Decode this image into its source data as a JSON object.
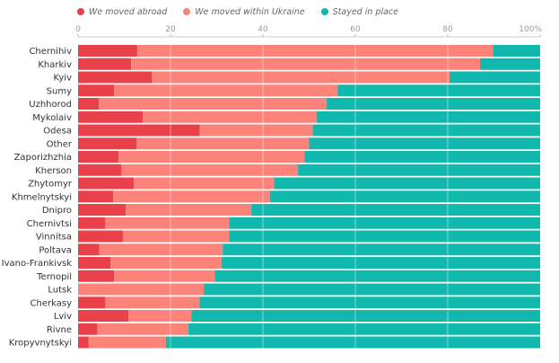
{
  "chart_data": {
    "type": "bar",
    "orientation": "horizontal",
    "stacked": true,
    "title": "",
    "xlabel": "",
    "ylabel": "",
    "xlim": [
      0,
      100
    ],
    "x_ticks": [
      "0",
      "20",
      "40",
      "60",
      "80",
      "100%"
    ],
    "x_tick_values": [
      0,
      20,
      40,
      60,
      80,
      100
    ],
    "grid": true,
    "legend_position": "top-left",
    "categories": [
      "Chernihiv",
      "Kharkiv",
      "Kyiv",
      "Sumy",
      "Uzhhorod",
      "Mykolaiv",
      "Odesa",
      "Other",
      "Zaporizhzhia",
      "Kherson",
      "Zhytomyr",
      "Khmelnytskyi",
      "Dnipro",
      "Chernivtsi",
      "Vinnitsa",
      "Poltava",
      "Ivano-Frankivsk",
      "Ternopil",
      "Lutsk",
      "Cherkasy",
      "Lviv",
      "Rivne",
      "Kropyvnytskyi"
    ],
    "series": [
      {
        "name": "We moved abroad",
        "color": "#e8414a",
        "values": [
          12.8,
          11.5,
          16.0,
          7.8,
          4.5,
          14.0,
          26.3,
          12.7,
          8.8,
          9.4,
          12.1,
          7.6,
          10.3,
          5.9,
          9.7,
          4.6,
          7.0,
          7.8,
          0,
          5.9,
          10.9,
          4.2,
          2.3
        ]
      },
      {
        "name": "We moved within Ukraine",
        "color": "#fb837a",
        "values": [
          77.0,
          75.5,
          64.4,
          48.4,
          49.3,
          37.6,
          24.5,
          37.3,
          40.2,
          38.2,
          30.3,
          33.9,
          27.2,
          26.8,
          23.0,
          26.7,
          24.0,
          21.8,
          27.2,
          20.4,
          13.6,
          19.7,
          16.7
        ]
      },
      {
        "name": "Stayed in place",
        "color": "#11b8ad",
        "values": [
          10.2,
          13.0,
          19.6,
          43.8,
          46.2,
          48.4,
          49.2,
          50.0,
          51.0,
          52.4,
          57.6,
          58.5,
          62.5,
          67.3,
          67.3,
          68.7,
          69.0,
          70.4,
          72.8,
          73.7,
          75.5,
          76.1,
          81.0
        ]
      }
    ]
  }
}
